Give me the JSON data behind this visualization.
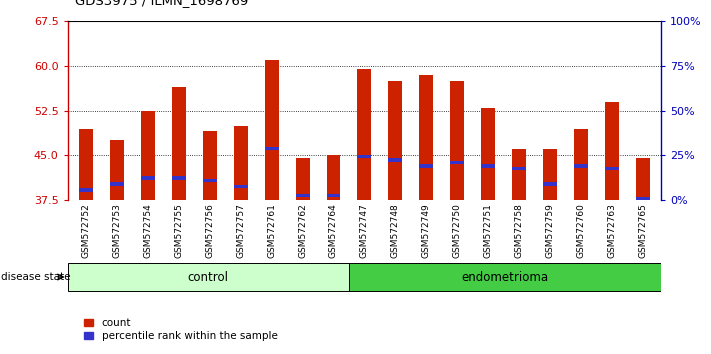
{
  "title": "GDS3975 / ILMN_1698769",
  "samples": [
    "GSM572752",
    "GSM572753",
    "GSM572754",
    "GSM572755",
    "GSM572756",
    "GSM572757",
    "GSM572761",
    "GSM572762",
    "GSM572764",
    "GSM572747",
    "GSM572748",
    "GSM572749",
    "GSM572750",
    "GSM572751",
    "GSM572758",
    "GSM572759",
    "GSM572760",
    "GSM572763",
    "GSM572765"
  ],
  "red_values": [
    49.5,
    47.5,
    52.5,
    56.5,
    49.0,
    50.0,
    61.0,
    44.5,
    45.0,
    59.5,
    57.5,
    58.5,
    57.5,
    53.0,
    46.0,
    46.0,
    49.5,
    54.0,
    44.5
  ],
  "blue_positions": [
    39.2,
    40.2,
    41.2,
    41.2,
    40.8,
    39.8,
    46.2,
    38.2,
    38.2,
    44.8,
    44.2,
    43.2,
    43.8,
    43.2,
    42.8,
    40.2,
    43.2,
    42.8,
    37.8
  ],
  "base_value": 37.5,
  "y_min": 37.5,
  "y_max": 67.5,
  "y_ticks": [
    37.5,
    45.0,
    52.5,
    60.0,
    67.5
  ],
  "right_y_ticks_pct": [
    0,
    25,
    50,
    75,
    100
  ],
  "right_y_labels": [
    "0%",
    "25%",
    "50%",
    "75%",
    "100%"
  ],
  "control_count": 9,
  "endometrioma_count": 10,
  "bar_width": 0.45,
  "red_color": "#CC2200",
  "blue_color": "#3333CC",
  "control_color": "#CCFFCC",
  "endometrioma_color": "#44CC44",
  "disease_label": "disease state",
  "control_label": "control",
  "endometrioma_label": "endometrioma",
  "legend_count": "count",
  "legend_percentile": "percentile rank within the sample",
  "left_tick_color": "#CC0000",
  "right_tick_color": "#0000BB",
  "plot_bg": "#FFFFFF",
  "xtick_area_bg": "#DDDDDD",
  "fig_bg": "#FFFFFF"
}
